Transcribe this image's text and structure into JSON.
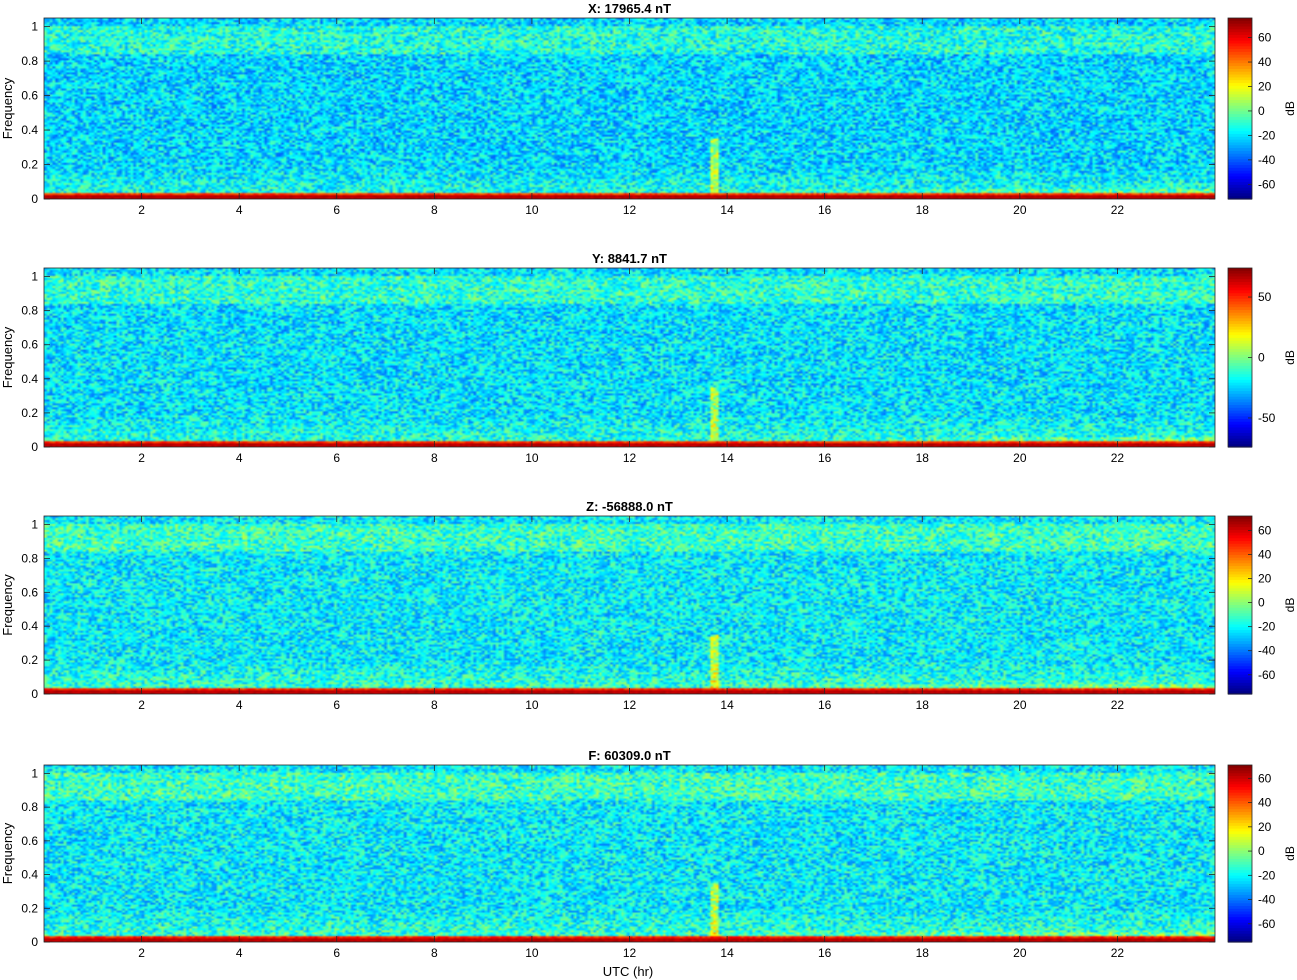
{
  "figure": {
    "xlabel": "UTC (hr)"
  },
  "chart_data": [
    {
      "type": "heatmap",
      "title": "X: 17965.4 nT",
      "ylabel": "Frequency",
      "xlim": [
        0,
        24
      ],
      "ylim": [
        0,
        1.05
      ],
      "xticks": [
        2,
        4,
        6,
        8,
        10,
        12,
        14,
        16,
        18,
        20,
        22
      ],
      "yticks": [
        0,
        0.2,
        0.4,
        0.6,
        0.8,
        1
      ],
      "colormap": "jet",
      "colorbar": {
        "label": "dB",
        "clim": [
          -72,
          76
        ],
        "ticks": [
          -60,
          -40,
          -20,
          0,
          20,
          40,
          60
        ]
      }
    },
    {
      "type": "heatmap",
      "title": "Y: 8841.7 nT",
      "ylabel": "Frequency",
      "xlim": [
        0,
        24
      ],
      "ylim": [
        0,
        1.05
      ],
      "xticks": [
        2,
        4,
        6,
        8,
        10,
        12,
        14,
        16,
        18,
        20,
        22
      ],
      "yticks": [
        0,
        0.2,
        0.4,
        0.6,
        0.8,
        1
      ],
      "colormap": "jet",
      "colorbar": {
        "label": "dB",
        "clim": [
          -74,
          74
        ],
        "ticks": [
          -50,
          0,
          50
        ]
      }
    },
    {
      "type": "heatmap",
      "title": "Z: -56888.0 nT",
      "ylabel": "Frequency",
      "xlim": [
        0,
        24
      ],
      "ylim": [
        0,
        1.05
      ],
      "xticks": [
        2,
        4,
        6,
        8,
        10,
        12,
        14,
        16,
        18,
        20,
        22
      ],
      "yticks": [
        0,
        0.2,
        0.4,
        0.6,
        0.8,
        1
      ],
      "colormap": "jet",
      "colorbar": {
        "label": "dB",
        "clim": [
          -76,
          72
        ],
        "ticks": [
          -60,
          -40,
          -20,
          0,
          20,
          40,
          60
        ]
      }
    },
    {
      "type": "heatmap",
      "title": "F: 60309.0 nT",
      "ylabel": "Frequency",
      "xlim": [
        0,
        24
      ],
      "ylim": [
        0,
        1.05
      ],
      "xticks": [
        2,
        4,
        6,
        8,
        10,
        12,
        14,
        16,
        18,
        20,
        22
      ],
      "yticks": [
        0,
        0.2,
        0.4,
        0.6,
        0.8,
        1
      ],
      "colormap": "jet",
      "colorbar": {
        "label": "dB",
        "clim": [
          -75,
          71
        ],
        "ticks": [
          -60,
          -40,
          -20,
          0,
          20,
          40,
          60
        ]
      }
    }
  ]
}
